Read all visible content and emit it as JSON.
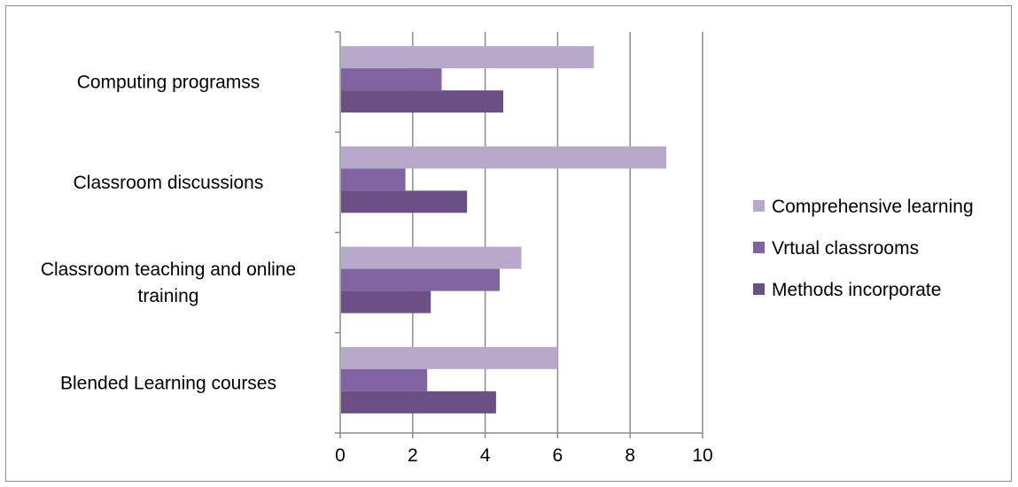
{
  "chart_data": {
    "type": "bar",
    "orientation": "horizontal",
    "categories": [
      [
        "Computing programss"
      ],
      [
        "Classroom discussions"
      ],
      [
        "Classroom teaching and online",
        "training"
      ],
      [
        "Blended Learning courses"
      ]
    ],
    "series": [
      {
        "name": "Comprehensive learning",
        "values": [
          7,
          9,
          5,
          6
        ]
      },
      {
        "name": "Vrtual classrooms",
        "values": [
          2.8,
          1.8,
          4.4,
          2.4
        ]
      },
      {
        "name": "Methods incorporate",
        "values": [
          4.5,
          3.5,
          2.5,
          4.3
        ]
      }
    ],
    "colors": [
      "#b7a9c9",
      "#8064a2",
      "#6a5084"
    ],
    "xlim": [
      0,
      10
    ],
    "xticks": [
      "0",
      "2",
      "4",
      "6",
      "8",
      "10"
    ],
    "grid": true,
    "legend_position": "right"
  }
}
